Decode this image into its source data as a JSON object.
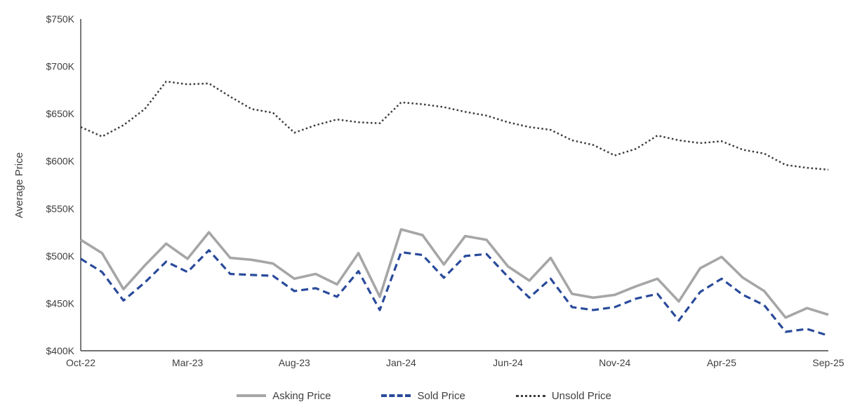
{
  "chart_data": {
    "type": "line",
    "title": "",
    "xlabel": "",
    "ylabel": "Average Price",
    "unit": "USD thousands",
    "ylim": [
      400,
      750
    ],
    "y_ticks": [
      400,
      450,
      500,
      550,
      600,
      650,
      700,
      750
    ],
    "y_tick_labels": [
      "$400K",
      "$450K",
      "$500K",
      "$550K",
      "$600K",
      "$650K",
      "$700K",
      "$750K"
    ],
    "grid": false,
    "legend_position": "bottom",
    "axis_color": "#404040",
    "x": [
      "Oct-22",
      "Nov-22",
      "Dec-22",
      "Jan-23",
      "Feb-23",
      "Mar-23",
      "Apr-23",
      "May-23",
      "Jun-23",
      "Jul-23",
      "Aug-23",
      "Sep-23",
      "Oct-23",
      "Nov-23",
      "Dec-23",
      "Jan-24",
      "Feb-24",
      "Mar-24",
      "Apr-24",
      "May-24",
      "Jun-24",
      "Jul-24",
      "Aug-24",
      "Sep-24",
      "Oct-24",
      "Nov-24",
      "Dec-24",
      "Jan-25",
      "Feb-25",
      "Mar-25",
      "Apr-25",
      "May-25",
      "Jun-25",
      "Jul-25",
      "Aug-25",
      "Sep-25"
    ],
    "x_tick_labels": [
      "Oct-22",
      "Mar-23",
      "Aug-23",
      "Jan-24",
      "Jun-24",
      "Nov-24",
      "Apr-25",
      "Sep-25"
    ],
    "series": [
      {
        "name": "Asking Price",
        "color": "#a6a6a6",
        "style": "solid",
        "values": [
          517,
          503,
          465,
          490,
          513,
          497,
          525,
          498,
          496,
          492,
          476,
          481,
          470,
          503,
          457,
          528,
          522,
          491,
          521,
          517,
          489,
          474,
          498,
          460,
          456,
          459,
          468,
          476,
          452,
          487,
          499,
          477,
          463,
          435,
          445,
          438
        ]
      },
      {
        "name": "Sold Price",
        "color": "#2a4b9b",
        "style": "dashed",
        "values": [
          497,
          483,
          453,
          472,
          494,
          483,
          506,
          481,
          480,
          479,
          463,
          466,
          457,
          484,
          443,
          504,
          501,
          477,
          500,
          502,
          478,
          456,
          476,
          446,
          443,
          446,
          455,
          460,
          432,
          462,
          476,
          459,
          448,
          420,
          423,
          416
        ]
      },
      {
        "name": "Unsold Price",
        "color": "#3d3d3d",
        "style": "dotted",
        "values": [
          636,
          626,
          638,
          655,
          684,
          681,
          682,
          668,
          655,
          651,
          630,
          638,
          644,
          641,
          640,
          662,
          660,
          657,
          652,
          648,
          641,
          636,
          633,
          622,
          617,
          606,
          613,
          627,
          622,
          619,
          621,
          612,
          608,
          596,
          593,
          591
        ]
      }
    ]
  }
}
